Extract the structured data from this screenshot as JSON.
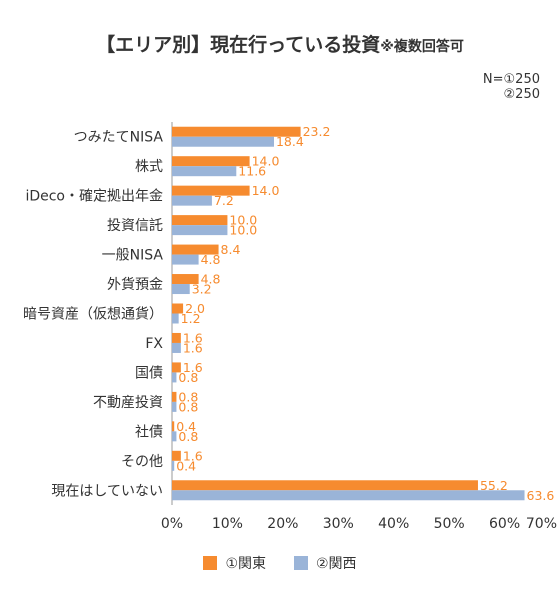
{
  "chart_data": {
    "type": "bar",
    "orientation": "horizontal",
    "title": "【エリア別】現在行っている投資",
    "title_note": "※複数回答可",
    "sample_size": [
      "N=①250",
      "②250"
    ],
    "categories": [
      "つみたてNISA",
      "株式",
      "iDeco・確定拠出年金",
      "投資信託",
      "一般NISA",
      "外貨預金",
      "暗号資産（仮想通貨）",
      "FX",
      "国債",
      "不動産投資",
      "社債",
      "その他",
      "現在はしていない"
    ],
    "series": [
      {
        "name": "①関東",
        "color": "#f68b2f",
        "label_color": "#f68b2f",
        "values": [
          23.2,
          14.0,
          14.0,
          10.0,
          8.4,
          4.8,
          2.0,
          1.6,
          1.6,
          0.8,
          0.4,
          1.6,
          55.2
        ]
      },
      {
        "name": "②関西",
        "color": "#9ab4d8",
        "label_color": "#f68b2f",
        "values": [
          18.4,
          11.6,
          7.2,
          10.0,
          4.8,
          3.2,
          1.2,
          1.6,
          0.8,
          0.8,
          0.8,
          0.4,
          63.6
        ]
      }
    ],
    "x_ticks": [
      "0%",
      "10%",
      "20%",
      "30%",
      "40%",
      "50%",
      "60%",
      "70%"
    ],
    "xlim": [
      0,
      70
    ],
    "grid": false,
    "legend_position": "bottom"
  }
}
